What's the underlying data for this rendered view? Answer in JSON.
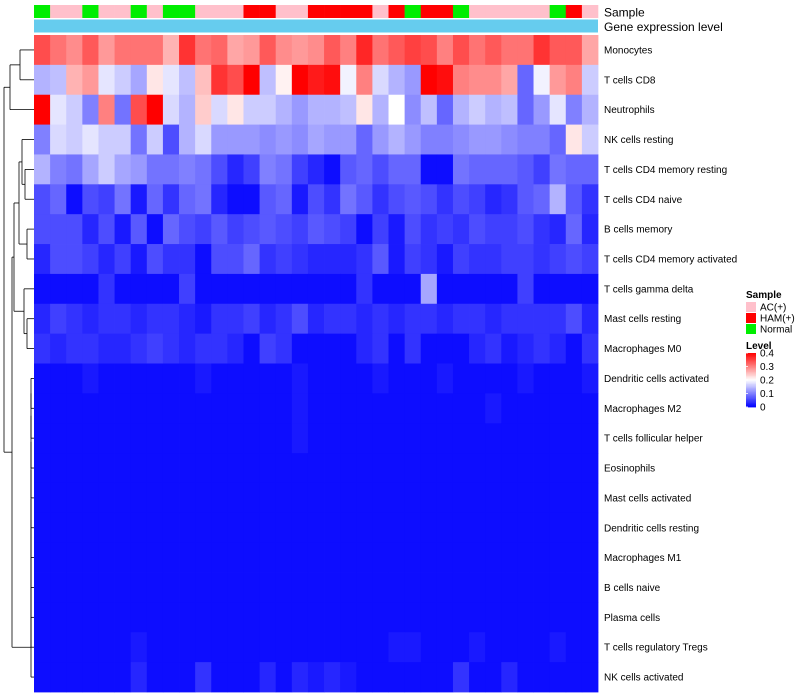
{
  "chart_data": {
    "type": "heatmap",
    "annotation_labels": [
      "Sample",
      "Gene expression level"
    ],
    "rows": [
      "Monocytes",
      "T cells CD8",
      "Neutrophils",
      "NK cells resting",
      "T cells CD4 memory resting",
      "T cells CD4 naive",
      "B cells memory",
      "T cells CD4 memory activated",
      "T cells gamma delta",
      "Mast cells resting",
      "Macrophages M0",
      "Dendritic cells activated",
      "Macrophages M2",
      "T cells follicular helper",
      "Eosinophils",
      "Mast cells activated",
      "Dendritic cells resting",
      "Macrophages M1",
      "B cells naive",
      "Plasma cells",
      "T cells regulatory  Tregs",
      "NK cells activated"
    ],
    "samples": [
      "Normal",
      "AC(+)",
      "AC(+)",
      "Normal",
      "AC(+)",
      "AC(+)",
      "Normal",
      "AC(+)",
      "Normal",
      "Normal",
      "AC(+)",
      "AC(+)",
      "AC(+)",
      "HAM(+)",
      "HAM(+)",
      "AC(+)",
      "AC(+)",
      "HAM(+)",
      "HAM(+)",
      "HAM(+)",
      "HAM(+)",
      "AC(+)",
      "HAM(+)",
      "Normal",
      "HAM(+)",
      "HAM(+)",
      "Normal",
      "AC(+)",
      "AC(+)",
      "AC(+)",
      "AC(+)",
      "AC(+)",
      "Normal",
      "HAM(+)",
      "AC(+)"
    ],
    "gene_expression_level": "uniform",
    "values": [
      [
        0.34,
        0.31,
        0.29,
        0.33,
        0.28,
        0.31,
        0.31,
        0.31,
        0.26,
        0.36,
        0.31,
        0.32,
        0.27,
        0.28,
        0.33,
        0.29,
        0.28,
        0.29,
        0.33,
        0.3,
        0.37,
        0.31,
        0.33,
        0.35,
        0.34,
        0.3,
        0.34,
        0.31,
        0.33,
        0.31,
        0.31,
        0.36,
        0.33,
        0.33,
        0.27
      ],
      [
        0.14,
        0.15,
        0.26,
        0.28,
        0.18,
        0.16,
        0.13,
        0.22,
        0.18,
        0.15,
        0.25,
        0.36,
        0.34,
        0.4,
        0.15,
        0.21,
        0.42,
        0.38,
        0.39,
        0.19,
        0.3,
        0.17,
        0.14,
        0.12,
        0.4,
        0.39,
        0.3,
        0.29,
        0.29,
        0.27,
        0.08,
        0.19,
        0.28,
        0.3,
        0.16
      ],
      [
        0.42,
        0.18,
        0.16,
        0.1,
        0.3,
        0.09,
        0.34,
        0.41,
        0.17,
        0.14,
        0.24,
        0.17,
        0.22,
        0.16,
        0.16,
        0.14,
        0.12,
        0.14,
        0.14,
        0.15,
        0.22,
        0.14,
        0.2,
        0.11,
        0.15,
        0.08,
        0.14,
        0.16,
        0.14,
        0.15,
        0.08,
        0.12,
        0.18,
        0.1,
        0.14
      ],
      [
        0.1,
        0.17,
        0.16,
        0.18,
        0.16,
        0.16,
        0.09,
        0.16,
        0.06,
        0.14,
        0.17,
        0.12,
        0.12,
        0.12,
        0.11,
        0.12,
        0.11,
        0.13,
        0.12,
        0.12,
        0.08,
        0.12,
        0.14,
        0.12,
        0.1,
        0.1,
        0.11,
        0.12,
        0.12,
        0.11,
        0.1,
        0.1,
        0.08,
        0.22,
        0.16
      ],
      [
        0.14,
        0.1,
        0.09,
        0.13,
        0.16,
        0.13,
        0.12,
        0.09,
        0.09,
        0.1,
        0.09,
        0.06,
        0.03,
        0.05,
        0.1,
        0.09,
        0.05,
        0.03,
        0.01,
        0.07,
        0.08,
        0.06,
        0.08,
        0.08,
        0.01,
        0.01,
        0.09,
        0.08,
        0.08,
        0.08,
        0.07,
        0.05,
        0.09,
        0.08,
        0.08
      ],
      [
        0.06,
        0.08,
        0.01,
        0.06,
        0.05,
        0.09,
        0.02,
        0.08,
        0.04,
        0.08,
        0.09,
        0.03,
        0.01,
        0.01,
        0.07,
        0.08,
        0.02,
        0.06,
        0.04,
        0.09,
        0.07,
        0.04,
        0.06,
        0.07,
        0.06,
        0.04,
        0.06,
        0.05,
        0.03,
        0.04,
        0.07,
        0.08,
        0.14,
        0.07,
        0.04
      ],
      [
        0.06,
        0.06,
        0.06,
        0.03,
        0.06,
        0.02,
        0.07,
        0.01,
        0.08,
        0.06,
        0.05,
        0.07,
        0.05,
        0.06,
        0.07,
        0.06,
        0.05,
        0.07,
        0.06,
        0.05,
        0.01,
        0.05,
        0.02,
        0.06,
        0.04,
        0.05,
        0.04,
        0.06,
        0.05,
        0.05,
        0.06,
        0.04,
        0.03,
        0.08,
        0.03
      ],
      [
        0.03,
        0.06,
        0.06,
        0.05,
        0.03,
        0.05,
        0.02,
        0.06,
        0.04,
        0.04,
        0.01,
        0.06,
        0.06,
        0.08,
        0.04,
        0.05,
        0.04,
        0.03,
        0.03,
        0.03,
        0.04,
        0.07,
        0.02,
        0.05,
        0.04,
        0.02,
        0.05,
        0.04,
        0.04,
        0.05,
        0.05,
        0.04,
        0.05,
        0.06,
        0.05
      ],
      [
        0.01,
        0.01,
        0.01,
        0.01,
        0.04,
        0.01,
        0.01,
        0.01,
        0.01,
        0.05,
        0.01,
        0.01,
        0.01,
        0.01,
        0.01,
        0.01,
        0.01,
        0.01,
        0.01,
        0.01,
        0.04,
        0.01,
        0.01,
        0.01,
        0.13,
        0.01,
        0.01,
        0.01,
        0.01,
        0.01,
        0.05,
        0.01,
        0.01,
        0.01,
        0.01
      ],
      [
        0.03,
        0.05,
        0.04,
        0.03,
        0.04,
        0.04,
        0.03,
        0.04,
        0.04,
        0.03,
        0.02,
        0.04,
        0.04,
        0.05,
        0.03,
        0.04,
        0.06,
        0.03,
        0.04,
        0.04,
        0.03,
        0.04,
        0.03,
        0.04,
        0.04,
        0.03,
        0.04,
        0.04,
        0.03,
        0.04,
        0.04,
        0.04,
        0.04,
        0.06,
        0.03
      ],
      [
        0.04,
        0.03,
        0.04,
        0.04,
        0.03,
        0.03,
        0.04,
        0.05,
        0.04,
        0.03,
        0.04,
        0.04,
        0.03,
        0.01,
        0.05,
        0.04,
        0.01,
        0.01,
        0.01,
        0.01,
        0.03,
        0.04,
        0.01,
        0.04,
        0.01,
        0.01,
        0.01,
        0.03,
        0.04,
        0.02,
        0.03,
        0.04,
        0.03,
        0.01,
        0.04
      ],
      [
        0.01,
        0.01,
        0.01,
        0.02,
        0.01,
        0.01,
        0.01,
        0.01,
        0.01,
        0.01,
        0.02,
        0.01,
        0.01,
        0.01,
        0.01,
        0.01,
        0.02,
        0.01,
        0.01,
        0.01,
        0.01,
        0.02,
        0.01,
        0.01,
        0.01,
        0.02,
        0.01,
        0.01,
        0.01,
        0.01,
        0.02,
        0.01,
        0.01,
        0.01,
        0.02
      ],
      [
        0.01,
        0.01,
        0.01,
        0.01,
        0.01,
        0.01,
        0.01,
        0.01,
        0.01,
        0.01,
        0.01,
        0.01,
        0.01,
        0.01,
        0.01,
        0.01,
        0.02,
        0.01,
        0.01,
        0.01,
        0.01,
        0.01,
        0.01,
        0.01,
        0.01,
        0.01,
        0.01,
        0.01,
        0.02,
        0.01,
        0.01,
        0.01,
        0.01,
        0.01,
        0.01
      ],
      [
        0.01,
        0.01,
        0.01,
        0.01,
        0.01,
        0.01,
        0.01,
        0.01,
        0.01,
        0.01,
        0.01,
        0.01,
        0.01,
        0.01,
        0.01,
        0.01,
        0.02,
        0.01,
        0.01,
        0.01,
        0.01,
        0.01,
        0.01,
        0.01,
        0.01,
        0.01,
        0.01,
        0.01,
        0.01,
        0.01,
        0.01,
        0.01,
        0.01,
        0.01,
        0.01
      ],
      [
        0.01,
        0.01,
        0.01,
        0.01,
        0.01,
        0.01,
        0.01,
        0.01,
        0.01,
        0.01,
        0.01,
        0.01,
        0.01,
        0.01,
        0.01,
        0.01,
        0.01,
        0.01,
        0.01,
        0.01,
        0.01,
        0.01,
        0.01,
        0.01,
        0.01,
        0.01,
        0.01,
        0.01,
        0.01,
        0.01,
        0.01,
        0.01,
        0.01,
        0.01,
        0.01
      ],
      [
        0.01,
        0.01,
        0.01,
        0.01,
        0.01,
        0.01,
        0.01,
        0.01,
        0.01,
        0.01,
        0.01,
        0.01,
        0.01,
        0.01,
        0.01,
        0.01,
        0.01,
        0.01,
        0.01,
        0.01,
        0.01,
        0.01,
        0.01,
        0.01,
        0.01,
        0.01,
        0.01,
        0.01,
        0.01,
        0.01,
        0.01,
        0.01,
        0.01,
        0.01,
        0.01
      ],
      [
        0.01,
        0.01,
        0.01,
        0.01,
        0.01,
        0.01,
        0.01,
        0.01,
        0.01,
        0.01,
        0.01,
        0.01,
        0.01,
        0.01,
        0.01,
        0.01,
        0.01,
        0.01,
        0.01,
        0.01,
        0.01,
        0.01,
        0.01,
        0.01,
        0.01,
        0.01,
        0.01,
        0.01,
        0.01,
        0.01,
        0.01,
        0.01,
        0.01,
        0.01,
        0.01
      ],
      [
        0.01,
        0.01,
        0.01,
        0.01,
        0.01,
        0.01,
        0.01,
        0.01,
        0.01,
        0.01,
        0.01,
        0.01,
        0.01,
        0.01,
        0.01,
        0.01,
        0.01,
        0.01,
        0.01,
        0.01,
        0.01,
        0.01,
        0.01,
        0.01,
        0.01,
        0.01,
        0.01,
        0.01,
        0.01,
        0.01,
        0.01,
        0.01,
        0.01,
        0.01,
        0.01
      ],
      [
        0.01,
        0.01,
        0.01,
        0.01,
        0.01,
        0.01,
        0.01,
        0.01,
        0.01,
        0.01,
        0.01,
        0.01,
        0.01,
        0.01,
        0.01,
        0.01,
        0.01,
        0.01,
        0.01,
        0.01,
        0.01,
        0.01,
        0.01,
        0.01,
        0.01,
        0.01,
        0.01,
        0.01,
        0.01,
        0.01,
        0.01,
        0.01,
        0.01,
        0.01,
        0.01
      ],
      [
        0.01,
        0.01,
        0.01,
        0.01,
        0.01,
        0.01,
        0.01,
        0.01,
        0.01,
        0.01,
        0.01,
        0.01,
        0.01,
        0.01,
        0.01,
        0.01,
        0.01,
        0.01,
        0.01,
        0.01,
        0.01,
        0.01,
        0.01,
        0.01,
        0.01,
        0.01,
        0.01,
        0.01,
        0.01,
        0.01,
        0.01,
        0.01,
        0.01,
        0.01,
        0.01
      ],
      [
        0.01,
        0.01,
        0.01,
        0.01,
        0.01,
        0.01,
        0.02,
        0.01,
        0.01,
        0.01,
        0.01,
        0.01,
        0.01,
        0.01,
        0.01,
        0.01,
        0.01,
        0.01,
        0.01,
        0.01,
        0.01,
        0.01,
        0.02,
        0.02,
        0.01,
        0.01,
        0.01,
        0.02,
        0.01,
        0.01,
        0.01,
        0.01,
        0.02,
        0.01,
        0.01
      ],
      [
        0.01,
        0.01,
        0.01,
        0.01,
        0.01,
        0.01,
        0.03,
        0.01,
        0.01,
        0.01,
        0.04,
        0.01,
        0.01,
        0.01,
        0.03,
        0.01,
        0.03,
        0.02,
        0.03,
        0.02,
        0.01,
        0.01,
        0.01,
        0.01,
        0.01,
        0.01,
        0.04,
        0.01,
        0.01,
        0.03,
        0.01,
        0.01,
        0.01,
        0.01,
        0.01
      ]
    ],
    "legend": {
      "sample": {
        "title": "Sample",
        "entries": [
          {
            "label": "AC(+)",
            "color": "#FFC0CB"
          },
          {
            "label": "HAM(+)",
            "color": "#FF0000"
          },
          {
            "label": "Normal",
            "color": "#00EE00"
          }
        ]
      },
      "level": {
        "title": "Level",
        "ticks": [
          0.4,
          0.3,
          0.2,
          0.1,
          0
        ],
        "tick_labels": [
          "0.4",
          "0.3",
          "0.2",
          "0.1",
          "0"
        ],
        "range": [
          0,
          0.4
        ],
        "low_color": "#0000FF",
        "mid_color": "#FFFFFF",
        "high_color": "#FF0000"
      }
    },
    "annotation_colors": {
      "gene_expression_level": "#66CCEE"
    }
  }
}
